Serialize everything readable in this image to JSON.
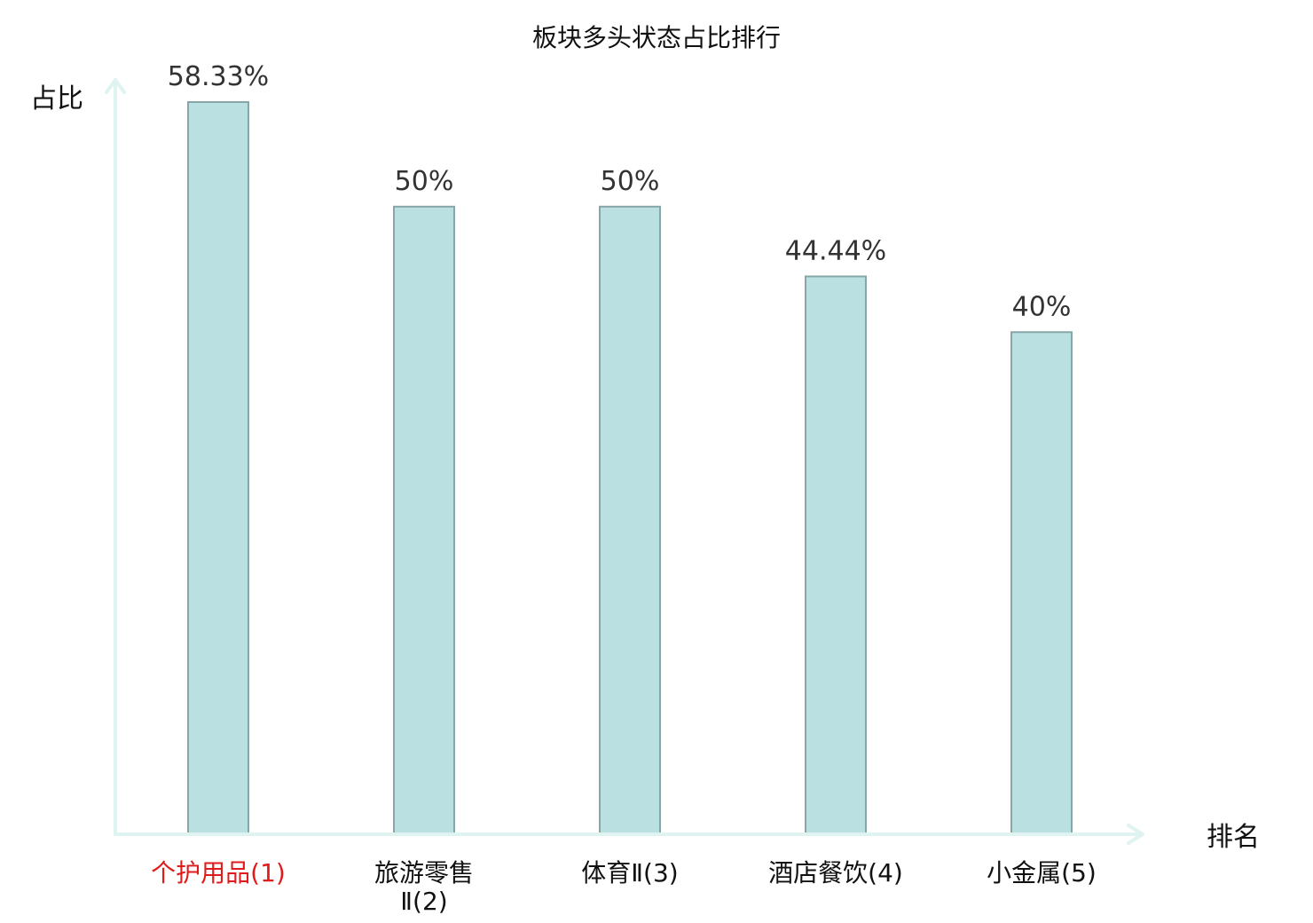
{
  "chart_data": {
    "type": "bar",
    "title": "板块多头状态占比排行",
    "ylabel": "占比",
    "xlabel": "排名",
    "categories": [
      [
        "个护用品(1)"
      ],
      [
        "旅游零售",
        "Ⅱ(2)"
      ],
      [
        "体育Ⅱ(3)"
      ],
      [
        "酒店餐饮(4)"
      ],
      [
        "小金属(5)"
      ]
    ],
    "values": [
      58.33,
      50,
      50,
      44.44,
      40
    ],
    "value_labels": [
      "58.33%",
      "50%",
      "50%",
      "44.44%",
      "40%"
    ],
    "highlight_index": 0,
    "ylim": [
      0,
      58.33
    ],
    "grid": false,
    "colors": {
      "bar_fill": "#bbe0e2",
      "bar_stroke": "#86a6a7",
      "axis": "#dff3f0",
      "highlight_text": "#e01b1b"
    }
  }
}
